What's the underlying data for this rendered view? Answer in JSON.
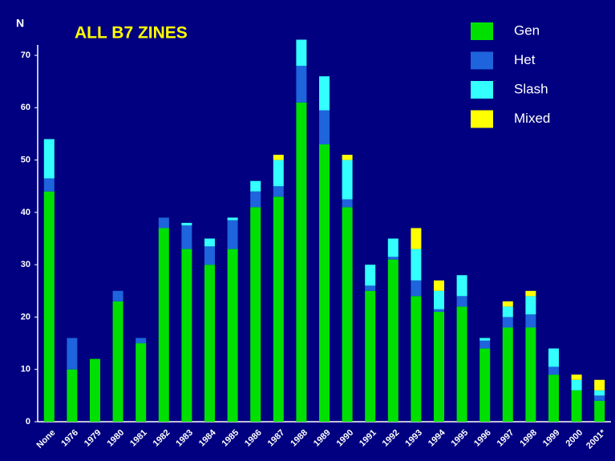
{
  "chart_data": {
    "type": "stacked_bar",
    "title": "ALL B7 ZINES",
    "y_label": "N",
    "categories": [
      "None",
      "1976",
      "1979",
      "1980",
      "1981",
      "1982",
      "1983",
      "1984",
      "1985",
      "1986",
      "1987",
      "1988",
      "1989",
      "1990",
      "1991",
      "1992",
      "1993",
      "1994",
      "1995",
      "1996",
      "1997",
      "1998",
      "1999",
      "2000",
      "2001*"
    ],
    "series": [
      {
        "name": "Gen",
        "color": "#00e000",
        "values": [
          44,
          10,
          12,
          23,
          15,
          37,
          33,
          30,
          33,
          41,
          43,
          61,
          53,
          41,
          25,
          31,
          24,
          21,
          22,
          14,
          18,
          18,
          9,
          6,
          4
        ]
      },
      {
        "name": "Het",
        "color": "#1e64dc",
        "values": [
          2.5,
          6,
          0,
          2,
          1,
          2,
          4.5,
          3.5,
          5.5,
          3,
          2,
          7,
          6.5,
          1.5,
          1,
          0.5,
          3,
          0.5,
          2,
          1.5,
          2,
          2.5,
          1.5,
          0,
          1
        ]
      },
      {
        "name": "Slash",
        "color": "#33ffff",
        "values": [
          7.5,
          0,
          0,
          0,
          0,
          0,
          0.5,
          1.5,
          0.5,
          2,
          5,
          5,
          6.5,
          7.5,
          4,
          3.5,
          6,
          3.5,
          4,
          0.5,
          2,
          3.5,
          3.5,
          2,
          1
        ]
      },
      {
        "name": "Mixed",
        "color": "#ffff00",
        "values": [
          0,
          0,
          0,
          0,
          0,
          0,
          0,
          0,
          0,
          0,
          1,
          0,
          0,
          1,
          0,
          0,
          4,
          2,
          0,
          0,
          1,
          1,
          0,
          1,
          2
        ]
      }
    ],
    "ylim": [
      0,
      72
    ],
    "yticks": [
      0,
      10,
      20,
      30,
      40,
      50,
      60,
      70
    ],
    "legend": "top-right"
  }
}
